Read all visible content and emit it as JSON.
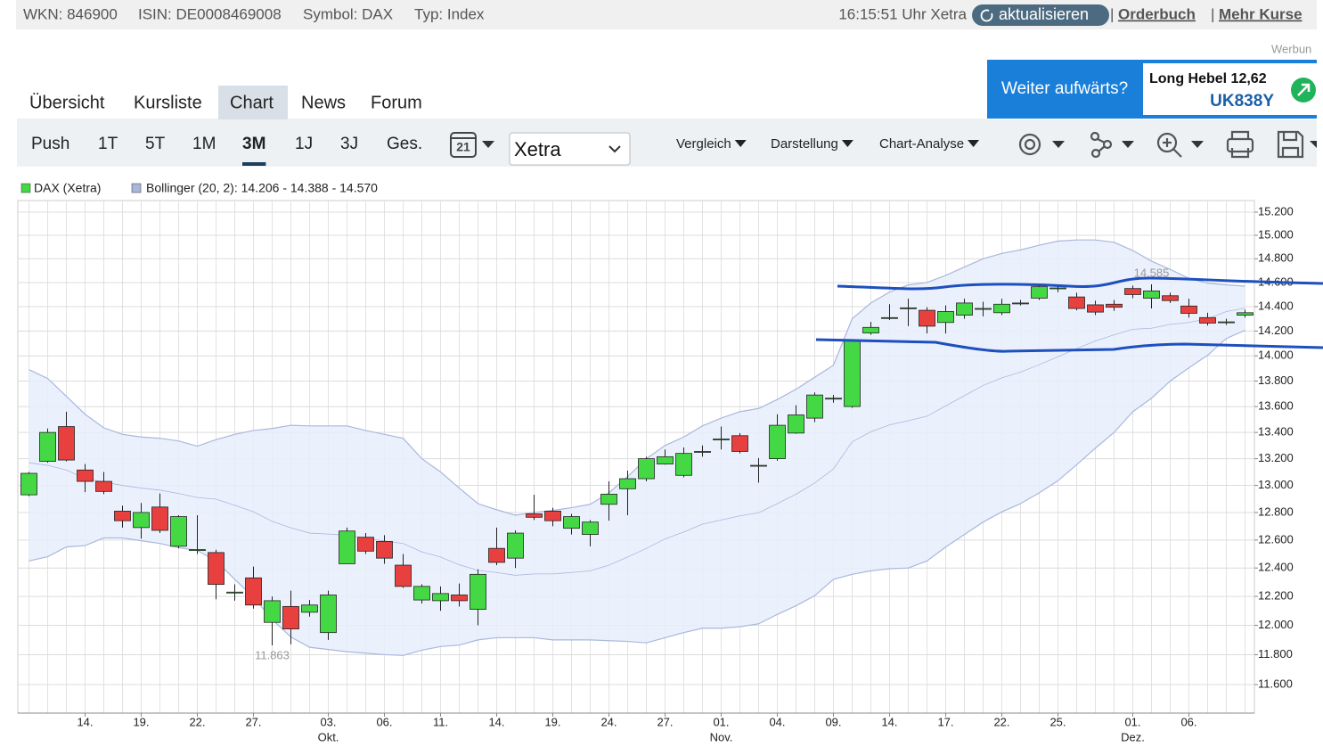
{
  "header": {
    "wkn": "WKN: 846900",
    "isin": "ISIN: DE0008469008",
    "symbol": "Symbol: DAX",
    "type": "Typ: Index",
    "time": "16:15:51 Uhr Xetra",
    "refresh": "aktualisieren",
    "links": [
      "Orderbuch",
      "Mehr Kurse"
    ]
  },
  "ad": {
    "label": "Werbun",
    "teaser": "Weiter aufwärts?",
    "product": "Long Hebel 12,62",
    "code": "UK838Y"
  },
  "tabs": [
    "Übersicht",
    "Kursliste",
    "Chart",
    "News",
    "Forum"
  ],
  "active_tab": 2,
  "periods": [
    "Push",
    "1T",
    "5T",
    "1M",
    "3M",
    "1J",
    "3J",
    "Ges."
  ],
  "active_period": 4,
  "calendar_day": "21",
  "exchange": "Xetra",
  "menus": [
    "Vergleich",
    "Darstellung",
    "Chart-Analyse"
  ],
  "chart_data": {
    "type": "candlestick",
    "log_scale": true,
    "grid": true,
    "ylim": [
      11412,
      15301
    ],
    "yticks": [
      {
        "value": 15200,
        "label": "15.200"
      },
      {
        "value": 15000,
        "label": "15.000"
      },
      {
        "value": 14800,
        "label": "14.800"
      },
      {
        "value": 14600,
        "label": "14.600"
      },
      {
        "value": 14400,
        "label": "14.400"
      },
      {
        "value": 14200,
        "label": "14.200"
      },
      {
        "value": 14000,
        "label": "14.000"
      },
      {
        "value": 13800,
        "label": "13.800"
      },
      {
        "value": 13600,
        "label": "13.600"
      },
      {
        "value": 13400,
        "label": "13.400"
      },
      {
        "value": 13200,
        "label": "13.200"
      },
      {
        "value": 13000,
        "label": "13.000"
      },
      {
        "value": 12800,
        "label": "12.800"
      },
      {
        "value": 12600,
        "label": "12.600"
      },
      {
        "value": 12400,
        "label": "12.400"
      },
      {
        "value": 12200,
        "label": "12.200"
      },
      {
        "value": 12000,
        "label": "12.000"
      },
      {
        "value": 11800,
        "label": "11.800"
      },
      {
        "value": 11600,
        "label": "11.600"
      }
    ],
    "categories": [
      null,
      null,
      null,
      "14.",
      null,
      null,
      "19.",
      null,
      null,
      "22.",
      null,
      null,
      "27.",
      null,
      null,
      null,
      "03.",
      null,
      null,
      "06.",
      null,
      null,
      "11.",
      null,
      null,
      "14.",
      null,
      null,
      "19.",
      null,
      null,
      "24.",
      null,
      null,
      "27.",
      null,
      null,
      "01.",
      null,
      null,
      "04.",
      null,
      null,
      "09.",
      null,
      null,
      "14.",
      null,
      null,
      "17.",
      null,
      null,
      "22.",
      null,
      null,
      "25.",
      null,
      null,
      null,
      "01.",
      null,
      null,
      "06.",
      null,
      null,
      null
    ],
    "category_months": [
      null,
      null,
      null,
      null,
      null,
      null,
      null,
      null,
      null,
      null,
      null,
      null,
      null,
      null,
      null,
      null,
      "Okt.",
      null,
      null,
      null,
      null,
      null,
      null,
      null,
      null,
      null,
      null,
      null,
      null,
      null,
      null,
      null,
      null,
      null,
      null,
      null,
      null,
      "Nov.",
      null,
      null,
      null,
      null,
      null,
      null,
      null,
      null,
      null,
      null,
      null,
      null,
      null,
      null,
      null,
      null,
      null,
      null,
      null,
      null,
      null,
      "Dez.",
      null,
      null,
      null,
      null,
      null,
      null
    ],
    "series": [
      {
        "name": "DAX (Xetra)",
        "color_up": "#44d944",
        "color_down": "#e8403e",
        "open": [
          12930,
          13180,
          13445,
          13115,
          13030,
          12810,
          12690,
          12840,
          12555,
          12530,
          12510,
          12227,
          12330,
          12020,
          12130,
          12090,
          11950,
          12430,
          12620,
          12590,
          12420,
          12175,
          12170,
          12210,
          12110,
          12540,
          12470,
          12790,
          12810,
          12685,
          12640,
          12860,
          12975,
          13050,
          13160,
          13075,
          13250,
          13345,
          13375,
          13145,
          13200,
          13395,
          13510,
          13660,
          13600,
          14185,
          14305,
          14385,
          14370,
          14270,
          14330,
          14380,
          14350,
          14425,
          14470,
          14550,
          14480,
          14415,
          14420,
          14550,
          14470,
          14490,
          14405,
          14310,
          14270,
          14330
        ],
        "high": [
          13100,
          13430,
          13560,
          13160,
          13100,
          12850,
          12870,
          12940,
          12780,
          12780,
          12530,
          12285,
          12410,
          12200,
          12240,
          12175,
          12240,
          12690,
          12650,
          12635,
          12500,
          12285,
          12270,
          12290,
          12390,
          12690,
          12670,
          12930,
          12835,
          12790,
          12745,
          13030,
          13110,
          13215,
          13270,
          13285,
          13300,
          13445,
          13395,
          13205,
          13540,
          13610,
          13710,
          13690,
          14135,
          14275,
          14420,
          14465,
          14395,
          14410,
          14465,
          14440,
          14465,
          14455,
          14575,
          14570,
          14515,
          14450,
          14455,
          14575,
          14585,
          14515,
          14465,
          14350,
          14300,
          14375
        ],
        "low": [
          12920,
          13170,
          13180,
          12950,
          12935,
          12690,
          12610,
          12650,
          12540,
          12500,
          12180,
          12170,
          12115,
          11863,
          11870,
          12060,
          11900,
          12430,
          12500,
          12430,
          12260,
          12150,
          12100,
          12130,
          12000,
          12420,
          12400,
          12745,
          12700,
          12640,
          12555,
          12740,
          12780,
          13030,
          13155,
          13060,
          13215,
          13270,
          13240,
          13020,
          13185,
          13390,
          13480,
          13630,
          13590,
          14170,
          14290,
          14240,
          14180,
          14180,
          14300,
          14320,
          14330,
          14410,
          14455,
          14520,
          14370,
          14330,
          14365,
          14470,
          14385,
          14430,
          14310,
          14245,
          14250,
          14310
        ],
        "close": [
          13090,
          13400,
          13190,
          13030,
          12955,
          12740,
          12800,
          12670,
          12770,
          12531,
          12284,
          12230,
          12140,
          12170,
          11975,
          12140,
          12210,
          12665,
          12520,
          12470,
          12270,
          12270,
          12220,
          12170,
          12355,
          12440,
          12650,
          12765,
          12740,
          12770,
          12730,
          12935,
          13050,
          13200,
          13215,
          13240,
          13255,
          13350,
          13255,
          13150,
          13455,
          13535,
          13690,
          13665,
          14120,
          14230,
          14310,
          14390,
          14240,
          14360,
          14430,
          14385,
          14420,
          14430,
          14565,
          14555,
          14385,
          14355,
          14395,
          14500,
          14530,
          14450,
          14345,
          14265,
          14275,
          14350
        ]
      }
    ],
    "bands": {
      "name": "Bollinger (20, 2): 14.206 - 14.388 - 14.570",
      "color": "#a9b7dd",
      "upper": [
        13890,
        13820,
        13680,
        13540,
        13435,
        13385,
        13365,
        13355,
        13335,
        13295,
        13345,
        13385,
        13415,
        13430,
        13455,
        13450,
        13450,
        13450,
        13415,
        13385,
        13355,
        13200,
        13100,
        12980,
        12865,
        12820,
        12780,
        12800,
        12815,
        12835,
        12860,
        12945,
        13065,
        13200,
        13300,
        13365,
        13450,
        13510,
        13560,
        13585,
        13655,
        13735,
        13830,
        13925,
        14300,
        14430,
        14520,
        14580,
        14600,
        14660,
        14730,
        14800,
        14845,
        14875,
        14915,
        14950,
        14960,
        14960,
        14940,
        14870,
        14780,
        14710,
        14635,
        14595,
        14580,
        14570
      ],
      "middle": [
        13170,
        13150,
        13115,
        13050,
        13025,
        13000,
        12980,
        12965,
        12940,
        12910,
        12898,
        12853,
        12805,
        12735,
        12688,
        12650,
        12643,
        12635,
        12613,
        12593,
        12575,
        12515,
        12478,
        12423,
        12383,
        12368,
        12348,
        12358,
        12358,
        12368,
        12380,
        12420,
        12478,
        12540,
        12608,
        12658,
        12715,
        12745,
        12775,
        12798,
        12865,
        12935,
        13018,
        13123,
        13328,
        13405,
        13458,
        13490,
        13525,
        13605,
        13685,
        13765,
        13825,
        13870,
        13930,
        13993,
        14058,
        14120,
        14170,
        14215,
        14223,
        14255,
        14270,
        14300,
        14360,
        14388
      ],
      "lower": [
        12450,
        12480,
        12550,
        12560,
        12615,
        12615,
        12595,
        12575,
        12545,
        12525,
        12450,
        12320,
        12195,
        12040,
        11920,
        11850,
        11835,
        11820,
        11810,
        11800,
        11795,
        11830,
        11855,
        11865,
        11900,
        11915,
        11915,
        11915,
        11900,
        11900,
        11900,
        11895,
        11890,
        11880,
        11915,
        11950,
        11980,
        11980,
        11990,
        12010,
        12075,
        12135,
        12205,
        12320,
        12355,
        12380,
        12395,
        12400,
        12450,
        12550,
        12640,
        12730,
        12805,
        12865,
        12945,
        13035,
        13155,
        13280,
        13400,
        13560,
        13665,
        13800,
        13905,
        14005,
        14140,
        14206
      ]
    },
    "annotations": [
      {
        "value": 11863,
        "label": "11.863"
      },
      {
        "value": 14585,
        "label": "14.585"
      }
    ]
  }
}
